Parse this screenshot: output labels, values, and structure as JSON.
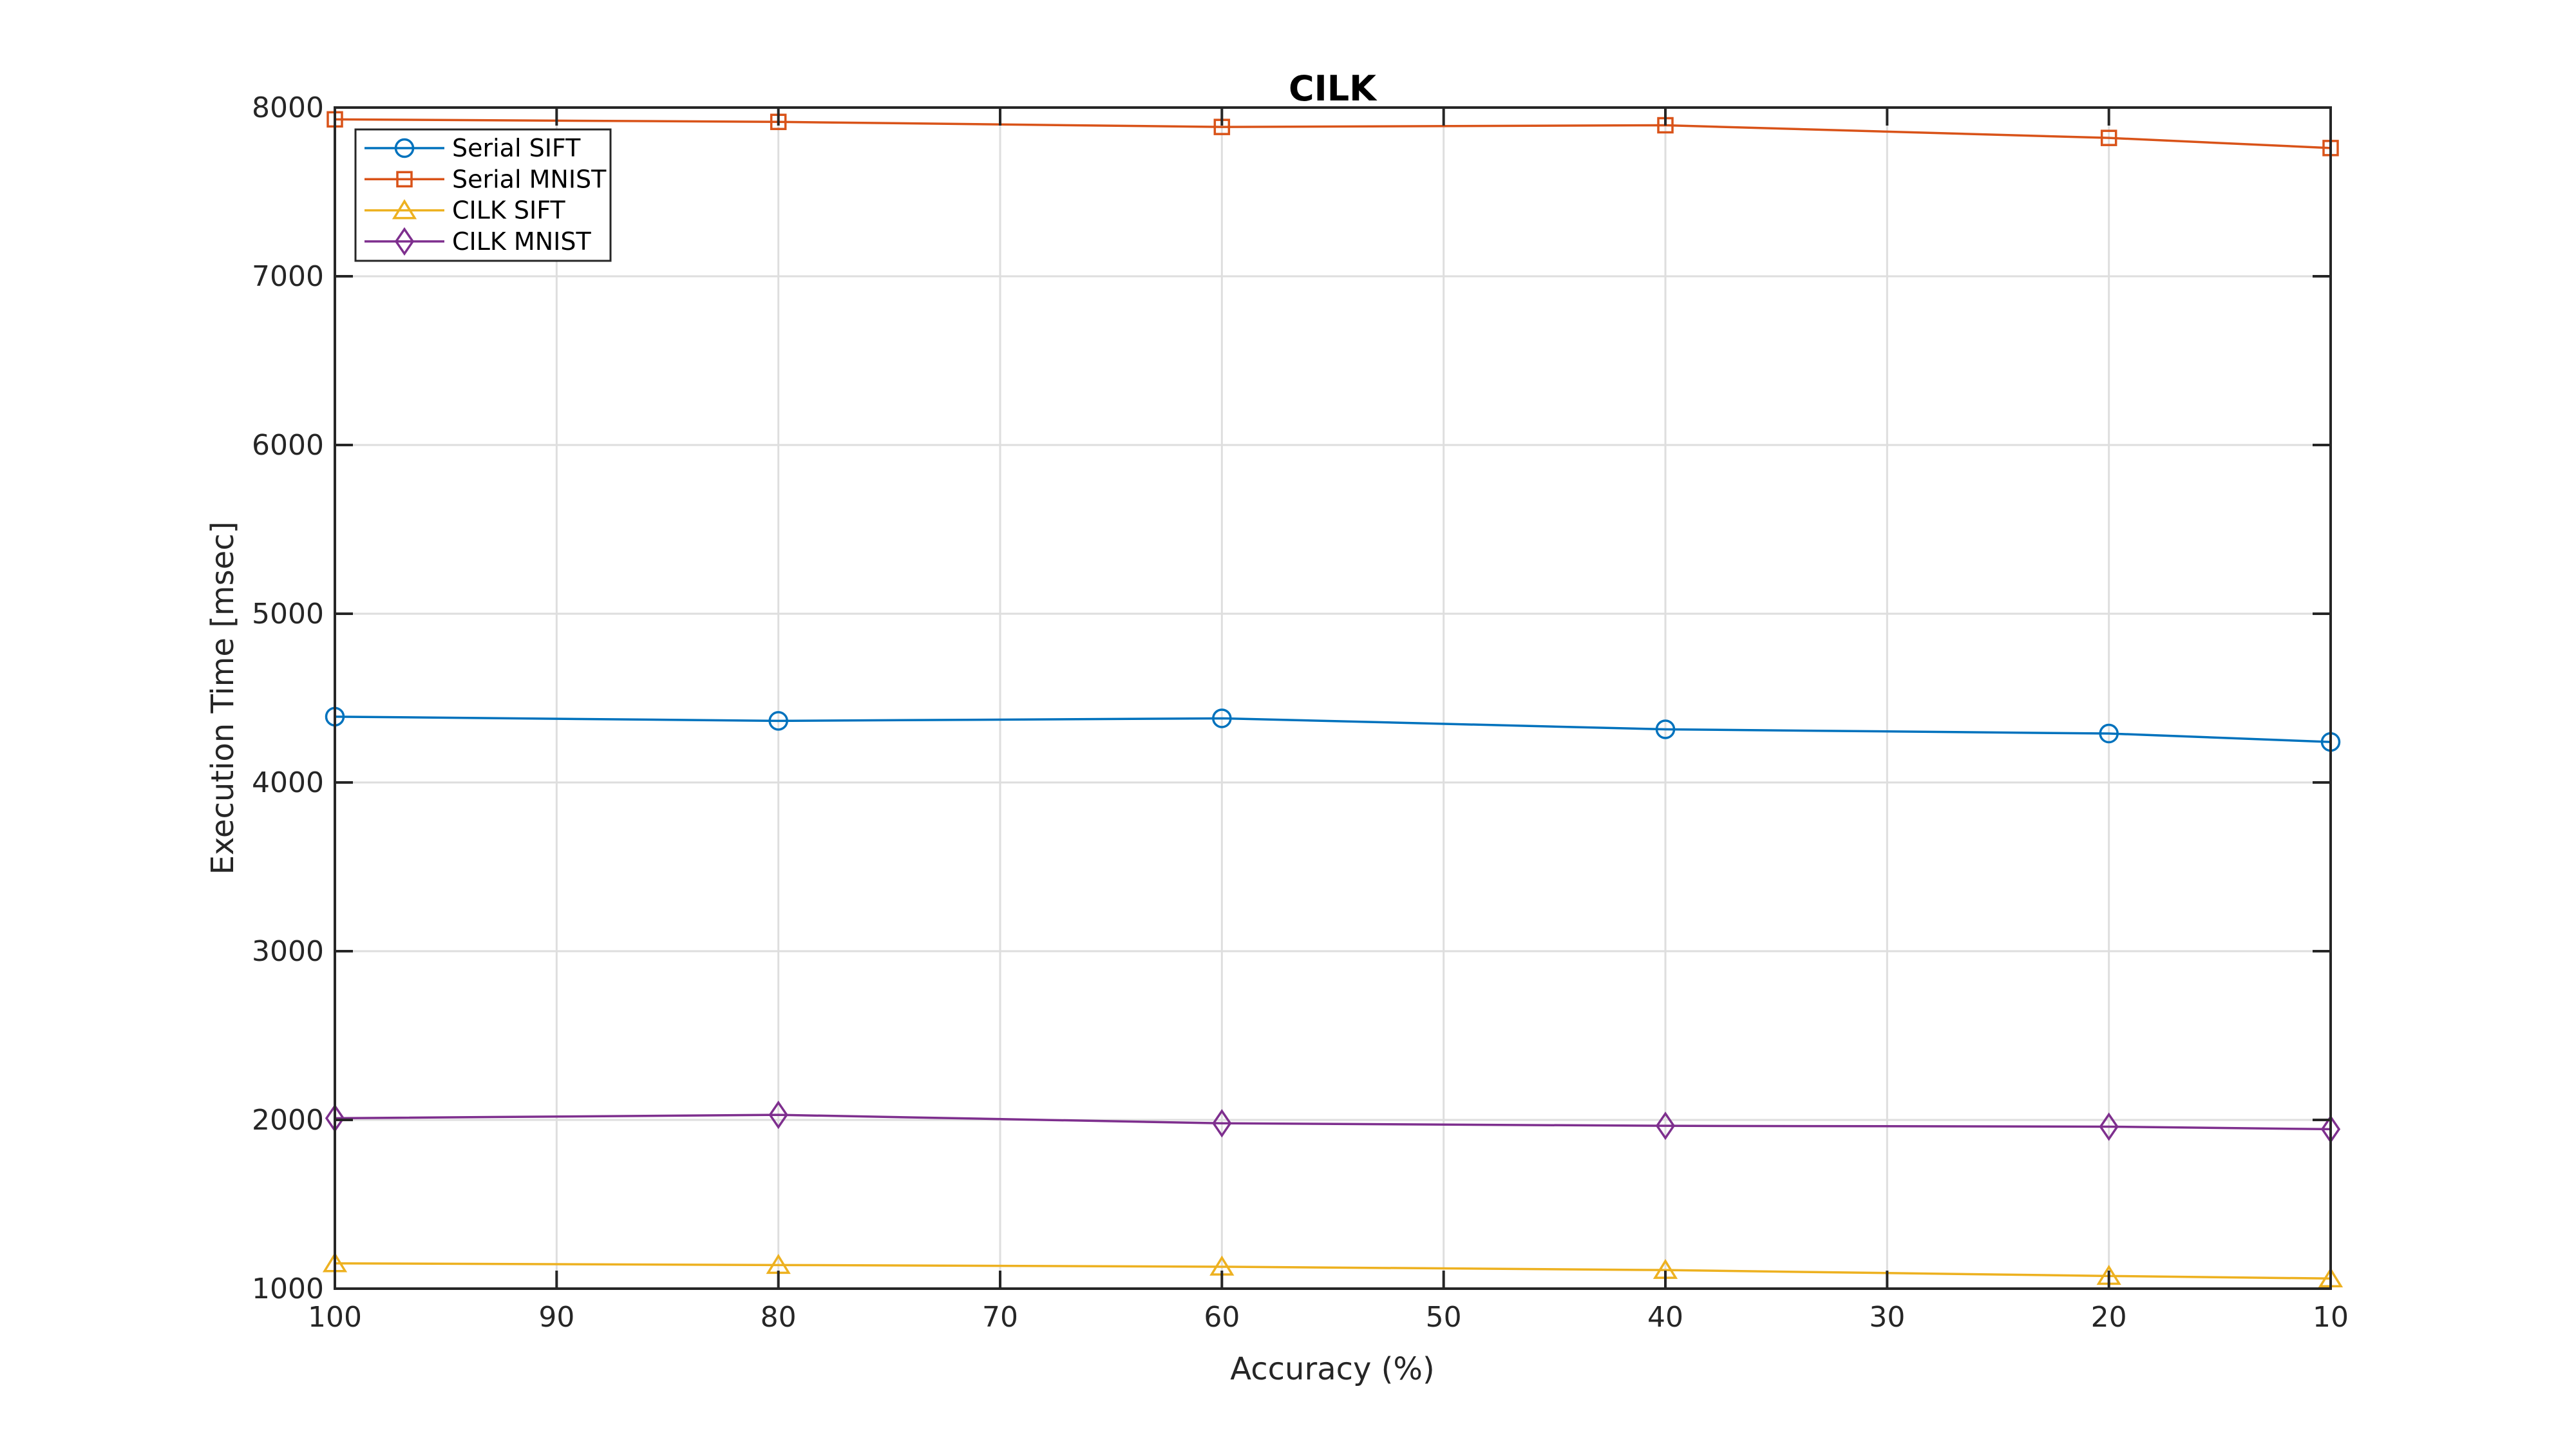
{
  "figure": {
    "background_color": "#ffffff",
    "axis_color": "#262626",
    "grid_color": "#dedede",
    "title": "CILK",
    "xlabel": "Accuracy (%)",
    "ylabel": "Execution Time [msec]"
  },
  "chart_data": {
    "type": "line",
    "title": "CILK",
    "xlabel": "Accuracy (%)",
    "ylabel": "Execution Time [msec]",
    "x": [
      100,
      80,
      60,
      40,
      20,
      10
    ],
    "x_ticks": [
      100,
      90,
      80,
      70,
      60,
      50,
      40,
      30,
      20,
      10
    ],
    "x_axis_reversed": true,
    "xlim": [
      100,
      10
    ],
    "y_ticks": [
      1000,
      2000,
      3000,
      4000,
      5000,
      6000,
      7000,
      8000
    ],
    "ylim": [
      1000,
      8000
    ],
    "grid": true,
    "legend_position": "top-left",
    "legend_entries": [
      "Serial SIFT",
      "Serial MNIST",
      "CILK SIFT",
      "CILK MNIST"
    ],
    "series": [
      {
        "name": "Serial SIFT",
        "color": "#0072BD",
        "marker": "circle",
        "values": [
          4390,
          4365,
          4380,
          4315,
          4290,
          4240
        ]
      },
      {
        "name": "Serial MNIST",
        "color": "#D95319",
        "marker": "square",
        "values": [
          7930,
          7915,
          7885,
          7895,
          7820,
          7760
        ]
      },
      {
        "name": "CILK SIFT",
        "color": "#EDB120",
        "marker": "triangle",
        "values": [
          1150,
          1140,
          1130,
          1110,
          1075,
          1060
        ]
      },
      {
        "name": "CILK MNIST",
        "color": "#7E2F8E",
        "marker": "diamond",
        "values": [
          2010,
          2030,
          1980,
          1965,
          1960,
          1945
        ]
      }
    ]
  }
}
